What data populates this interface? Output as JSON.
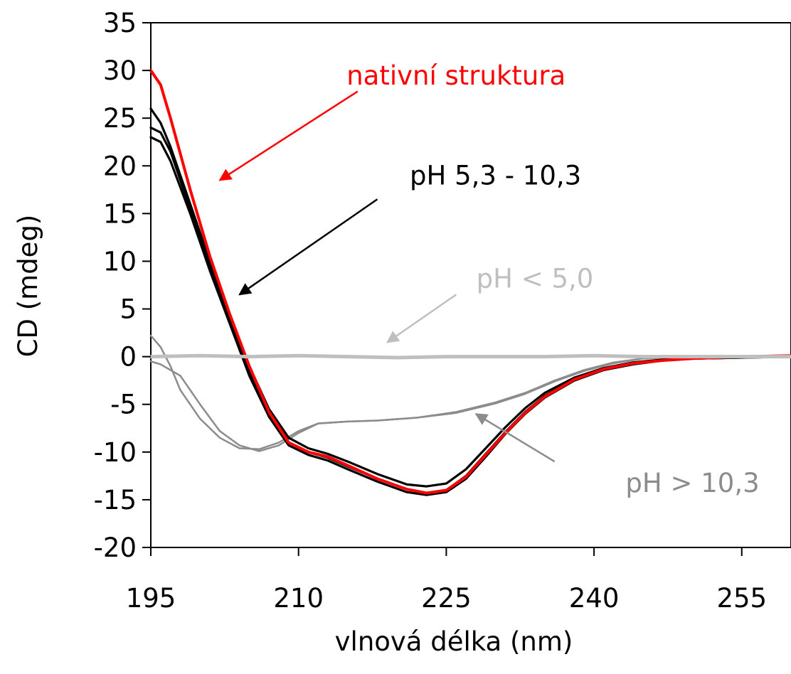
{
  "chart_data": {
    "type": "line",
    "title": "",
    "xlabel": "vlnová délka (nm)",
    "ylabel": "CD (mdeg)",
    "xlim": [
      195,
      260
    ],
    "ylim": [
      -20,
      35
    ],
    "x_ticks": [
      195,
      210,
      225,
      240,
      255
    ],
    "y_ticks": [
      -20,
      -15,
      -10,
      -5,
      0,
      5,
      10,
      15,
      20,
      25,
      30,
      35
    ],
    "grid": false,
    "legend": "none",
    "series": [
      {
        "color": "#8c8c8c",
        "points": [
          [
            195,
            2.2
          ],
          [
            196,
            1.0
          ],
          [
            197,
            -1.0
          ],
          [
            198,
            -3.5
          ],
          [
            200,
            -6.5
          ],
          [
            202,
            -8.5
          ],
          [
            204,
            -9.6
          ],
          [
            206,
            -9.7
          ],
          [
            208,
            -9.0
          ],
          [
            210,
            -7.8
          ],
          [
            212,
            -7.0
          ],
          [
            215,
            -6.8
          ],
          [
            218,
            -6.7
          ],
          [
            222,
            -6.4
          ],
          [
            226,
            -5.8
          ],
          [
            230,
            -4.8
          ],
          [
            233,
            -3.8
          ],
          [
            236,
            -2.5
          ],
          [
            239,
            -1.4
          ],
          [
            242,
            -0.6
          ],
          [
            245,
            -0.2
          ],
          [
            250,
            0.0
          ],
          [
            260,
            0.0
          ]
        ]
      },
      {
        "color": "#8c8c8c",
        "points": [
          [
            195,
            -0.5
          ],
          [
            196,
            -0.8
          ],
          [
            198,
            -2.0
          ],
          [
            200,
            -5.0
          ],
          [
            202,
            -7.8
          ],
          [
            204,
            -9.3
          ],
          [
            206,
            -9.9
          ],
          [
            208,
            -9.3
          ],
          [
            210,
            -8.0
          ],
          [
            212,
            -7.0
          ],
          [
            215,
            -6.8
          ],
          [
            218,
            -6.7
          ],
          [
            222,
            -6.4
          ],
          [
            226,
            -5.9
          ],
          [
            230,
            -4.9
          ],
          [
            233,
            -3.9
          ],
          [
            236,
            -2.6
          ],
          [
            239,
            -1.5
          ],
          [
            242,
            -0.7
          ],
          [
            245,
            -0.2
          ],
          [
            250,
            0.0
          ],
          [
            260,
            0.0
          ]
        ]
      },
      {
        "color": "#000000",
        "points": [
          [
            195,
            26.0
          ],
          [
            196,
            24.5
          ],
          [
            197,
            22.0
          ],
          [
            199,
            16.0
          ],
          [
            201,
            10.0
          ],
          [
            203,
            4.5
          ],
          [
            205,
            -1.0
          ],
          [
            207,
            -5.5
          ],
          [
            209,
            -8.5
          ],
          [
            211,
            -9.6
          ],
          [
            213,
            -10.2
          ],
          [
            215,
            -11.0
          ],
          [
            218,
            -12.3
          ],
          [
            221,
            -13.4
          ],
          [
            223,
            -13.6
          ],
          [
            225,
            -13.3
          ],
          [
            227,
            -11.8
          ],
          [
            229,
            -9.6
          ],
          [
            231,
            -7.4
          ],
          [
            233,
            -5.4
          ],
          [
            235,
            -3.8
          ],
          [
            238,
            -2.2
          ],
          [
            241,
            -1.2
          ],
          [
            244,
            -0.6
          ],
          [
            247,
            -0.3
          ],
          [
            250,
            -0.1
          ],
          [
            255,
            0.0
          ],
          [
            260,
            0.0
          ]
        ]
      },
      {
        "color": "#000000",
        "points": [
          [
            195,
            24.0
          ],
          [
            196,
            23.5
          ],
          [
            197,
            21.5
          ],
          [
            199,
            15.5
          ],
          [
            201,
            9.5
          ],
          [
            203,
            4.0
          ],
          [
            205,
            -1.5
          ],
          [
            207,
            -6.0
          ],
          [
            209,
            -9.0
          ],
          [
            211,
            -10.0
          ],
          [
            213,
            -10.6
          ],
          [
            215,
            -11.5
          ],
          [
            218,
            -12.8
          ],
          [
            221,
            -13.9
          ],
          [
            223,
            -14.3
          ],
          [
            225,
            -14.0
          ],
          [
            227,
            -12.5
          ],
          [
            229,
            -10.2
          ],
          [
            231,
            -7.9
          ],
          [
            233,
            -5.8
          ],
          [
            235,
            -4.1
          ],
          [
            238,
            -2.4
          ],
          [
            241,
            -1.3
          ],
          [
            244,
            -0.7
          ],
          [
            247,
            -0.4
          ],
          [
            250,
            -0.2
          ],
          [
            255,
            -0.1
          ],
          [
            260,
            0.0
          ]
        ]
      },
      {
        "color": "#000000",
        "points": [
          [
            195,
            23.0
          ],
          [
            196,
            22.5
          ],
          [
            197,
            20.5
          ],
          [
            199,
            15.0
          ],
          [
            201,
            9.0
          ],
          [
            203,
            3.5
          ],
          [
            205,
            -2.0
          ],
          [
            207,
            -6.3
          ],
          [
            209,
            -9.3
          ],
          [
            211,
            -10.3
          ],
          [
            213,
            -10.9
          ],
          [
            215,
            -11.8
          ],
          [
            218,
            -13.1
          ],
          [
            221,
            -14.2
          ],
          [
            223,
            -14.5
          ],
          [
            225,
            -14.2
          ],
          [
            227,
            -12.8
          ],
          [
            229,
            -10.5
          ],
          [
            231,
            -8.1
          ],
          [
            233,
            -6.0
          ],
          [
            235,
            -4.3
          ],
          [
            238,
            -2.5
          ],
          [
            241,
            -1.4
          ],
          [
            244,
            -0.8
          ],
          [
            247,
            -0.4
          ],
          [
            250,
            -0.2
          ],
          [
            255,
            -0.1
          ],
          [
            260,
            0.0
          ]
        ]
      },
      {
        "color": "#ff0000",
        "points": [
          [
            195,
            30.0
          ],
          [
            196,
            28.5
          ],
          [
            197,
            25.0
          ],
          [
            199,
            17.5
          ],
          [
            201,
            10.5
          ],
          [
            203,
            4.5
          ],
          [
            205,
            -1.0
          ],
          [
            207,
            -5.8
          ],
          [
            209,
            -9.0
          ],
          [
            211,
            -10.0
          ],
          [
            213,
            -10.5
          ],
          [
            215,
            -11.4
          ],
          [
            218,
            -12.8
          ],
          [
            221,
            -13.9
          ],
          [
            223,
            -14.3
          ],
          [
            225,
            -14.0
          ],
          [
            227,
            -12.6
          ],
          [
            229,
            -10.3
          ],
          [
            231,
            -8.0
          ],
          [
            233,
            -5.9
          ],
          [
            235,
            -4.2
          ],
          [
            238,
            -2.4
          ],
          [
            241,
            -1.3
          ],
          [
            244,
            -0.7
          ],
          [
            247,
            -0.4
          ],
          [
            250,
            -0.2
          ],
          [
            255,
            0.0
          ],
          [
            260,
            0.1
          ]
        ]
      },
      {
        "color": "#bfbfbf",
        "points": [
          [
            195,
            0.0
          ],
          [
            200,
            0.1
          ],
          [
            205,
            0.0
          ],
          [
            210,
            0.1
          ],
          [
            215,
            0.0
          ],
          [
            220,
            -0.1
          ],
          [
            225,
            0.0
          ],
          [
            230,
            0.0
          ],
          [
            235,
            0.0
          ],
          [
            240,
            0.1
          ],
          [
            245,
            0.0
          ],
          [
            250,
            0.0
          ],
          [
            255,
            0.0
          ],
          [
            260,
            0.0
          ]
        ]
      }
    ],
    "annotations": [
      {
        "text": "nativní struktura",
        "color": "#ff0000",
        "x": 226,
        "y": 29.5,
        "arrow_from": [
          216,
          27.8
        ],
        "arrow_to": [
          202,
          18.5
        ]
      },
      {
        "text": "pH 5,3 - 10,3",
        "color": "#000000",
        "x": 230,
        "y": 19.0,
        "arrow_from": [
          218,
          16.5
        ],
        "arrow_to": [
          204,
          6.5
        ]
      },
      {
        "text": "pH < 5,0",
        "color": "#bfbfbf",
        "x": 234,
        "y": 8.2,
        "arrow_from": [
          226,
          6.5
        ],
        "arrow_to": [
          219,
          1.5
        ]
      },
      {
        "text": "pH > 10,3",
        "color": "#8c8c8c",
        "x": 250,
        "y": -13.2,
        "arrow_from": [
          236,
          -11.0
        ],
        "arrow_to": [
          228,
          -6.0
        ]
      }
    ]
  }
}
